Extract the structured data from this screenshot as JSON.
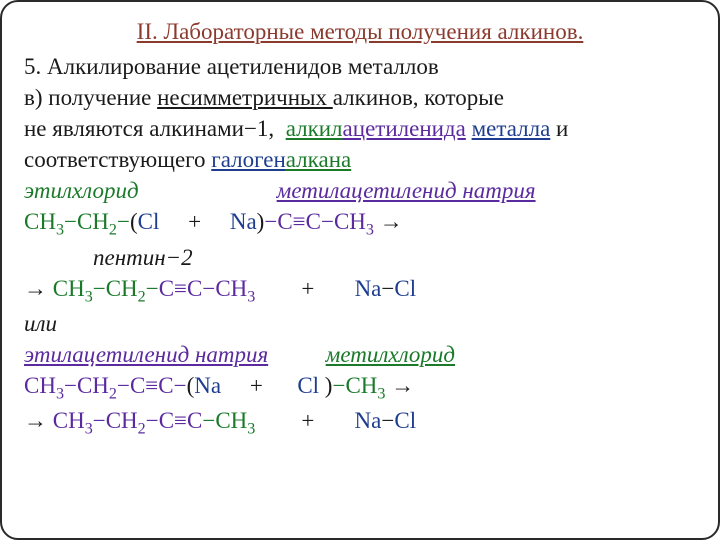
{
  "colors": {
    "brown": "#8b3a2e",
    "purple": "#5a2a9e",
    "blue": "#1e3d8f",
    "green": "#1a7a2a",
    "black": "#1a1a1a"
  },
  "title": {
    "text": "II. Лабораторные методы получения алкинов.",
    "color": "#8b3a2e",
    "fontsize": 24,
    "underline": true,
    "align": "center"
  },
  "lines": [
    {
      "spans": [
        {
          "text": "5. Алкилирование ацетиленидов металлов",
          "color": "#1a1a1a",
          "underline": false
        }
      ]
    },
    {
      "spans": [
        {
          "text": "в) получение ",
          "color": "#1a1a1a"
        },
        {
          "text": "несимметричных ",
          "color": "#1a1a1a",
          "underline": true
        },
        {
          "text": "алкинов, которые",
          "color": "#1a1a1a"
        }
      ]
    },
    {
      "spans": [
        {
          "text": "не являются алкинами−1,  ",
          "color": "#1a1a1a"
        },
        {
          "text": "алкил",
          "color": "#1a7a2a",
          "underline": true
        },
        {
          "text": "ацетиленида",
          "color": "#5a2a9e",
          "underline": true
        },
        {
          "text": " ",
          "color": "#1a1a1a"
        },
        {
          "text": "металла",
          "color": "#1e3d8f",
          "underline": true
        },
        {
          "text": " и",
          "color": "#1a1a1a"
        }
      ]
    },
    {
      "spans": [
        {
          "text": "соответствующего ",
          "color": "#1a1a1a"
        },
        {
          "text": "галоген",
          "color": "#1e3d8f",
          "underline": true
        },
        {
          "text": "алкана",
          "color": "#1a7a2a",
          "underline": true
        }
      ]
    },
    {
      "spans": [
        {
          "text": "этилхлорид",
          "color": "#1a7a2a",
          "italic": true
        },
        {
          "text": "                        ",
          "color": "#1a1a1a"
        },
        {
          "text": "метилацетиленид натрия",
          "color": "#5a2a9e",
          "italic": true,
          "underline": true
        }
      ]
    },
    {
      "spans": [
        {
          "text": "CH",
          "color": "#1a7a2a"
        },
        {
          "text": "3",
          "color": "#1a7a2a",
          "sub": true
        },
        {
          "text": "−CH",
          "color": "#1a7a2a"
        },
        {
          "text": "2",
          "color": "#1a7a2a",
          "sub": true
        },
        {
          "text": "−",
          "color": "#1a7a2a"
        },
        {
          "text": "(",
          "color": "#1a1a1a"
        },
        {
          "text": "Cl",
          "color": "#1e3d8f"
        },
        {
          "text": "     +     ",
          "color": "#1a1a1a"
        },
        {
          "text": "Na",
          "color": "#1e3d8f"
        },
        {
          "text": ")",
          "color": "#1a1a1a"
        },
        {
          "text": "−C≡C−CH",
          "color": "#5a2a9e"
        },
        {
          "text": "3",
          "color": "#5a2a9e",
          "sub": true
        },
        {
          "text": " →",
          "color": "#1a1a1a"
        }
      ]
    },
    {
      "spans": [
        {
          "text": "            ",
          "color": "#1a1a1a"
        },
        {
          "text": "пентин−2",
          "color": "#1a1a1a",
          "italic": true
        }
      ]
    },
    {
      "spans": [
        {
          "text": "→ ",
          "color": "#1a1a1a"
        },
        {
          "text": "CH",
          "color": "#1a7a2a"
        },
        {
          "text": "3",
          "color": "#1a7a2a",
          "sub": true
        },
        {
          "text": "−CH",
          "color": "#1a7a2a"
        },
        {
          "text": "2",
          "color": "#1a7a2a",
          "sub": true
        },
        {
          "text": "−",
          "color": "#1a7a2a"
        },
        {
          "text": "C≡C−CH",
          "color": "#5a2a9e"
        },
        {
          "text": "3",
          "color": "#5a2a9e",
          "sub": true
        },
        {
          "text": "        +       ",
          "color": "#1a1a1a"
        },
        {
          "text": "Na",
          "color": "#1e3d8f"
        },
        {
          "text": "−",
          "color": "#1a1a1a"
        },
        {
          "text": "Cl",
          "color": "#1e3d8f"
        }
      ]
    },
    {
      "spans": [
        {
          "text": "или",
          "color": "#1a1a1a",
          "italic": true
        }
      ]
    },
    {
      "spans": [
        {
          "text": "этилацетиленид натрия",
          "color": "#5a2a9e",
          "italic": true,
          "underline": true
        },
        {
          "text": "          ",
          "color": "#1a1a1a"
        },
        {
          "text": "метилхлорид",
          "color": "#1a7a2a",
          "italic": true,
          "underline": true
        }
      ]
    },
    {
      "spans": [
        {
          "text": "CH",
          "color": "#5a2a9e"
        },
        {
          "text": "3",
          "color": "#5a2a9e",
          "sub": true
        },
        {
          "text": "−CH",
          "color": "#5a2a9e"
        },
        {
          "text": "2",
          "color": "#5a2a9e",
          "sub": true
        },
        {
          "text": "−C≡C−",
          "color": "#5a2a9e"
        },
        {
          "text": "(",
          "color": "#1a1a1a"
        },
        {
          "text": "Na",
          "color": "#1e3d8f"
        },
        {
          "text": "     +      ",
          "color": "#1a1a1a"
        },
        {
          "text": "Cl ",
          "color": "#1e3d8f"
        },
        {
          "text": ")",
          "color": "#1a1a1a"
        },
        {
          "text": "−CH",
          "color": "#1a7a2a"
        },
        {
          "text": "3",
          "color": "#1a7a2a",
          "sub": true
        },
        {
          "text": " →",
          "color": "#1a1a1a"
        }
      ]
    },
    {
      "spans": [
        {
          "text": "→ ",
          "color": "#1a1a1a"
        },
        {
          "text": "CH",
          "color": "#5a2a9e"
        },
        {
          "text": "3",
          "color": "#5a2a9e",
          "sub": true
        },
        {
          "text": "−CH",
          "color": "#5a2a9e"
        },
        {
          "text": "2",
          "color": "#5a2a9e",
          "sub": true
        },
        {
          "text": "−C≡C",
          "color": "#5a2a9e"
        },
        {
          "text": "−CH",
          "color": "#1a7a2a"
        },
        {
          "text": "3",
          "color": "#1a7a2a",
          "sub": true
        },
        {
          "text": "        +       ",
          "color": "#1a1a1a"
        },
        {
          "text": "Na",
          "color": "#1e3d8f"
        },
        {
          "text": "−",
          "color": "#1a1a1a"
        },
        {
          "text": "Cl",
          "color": "#1e3d8f"
        }
      ]
    }
  ]
}
